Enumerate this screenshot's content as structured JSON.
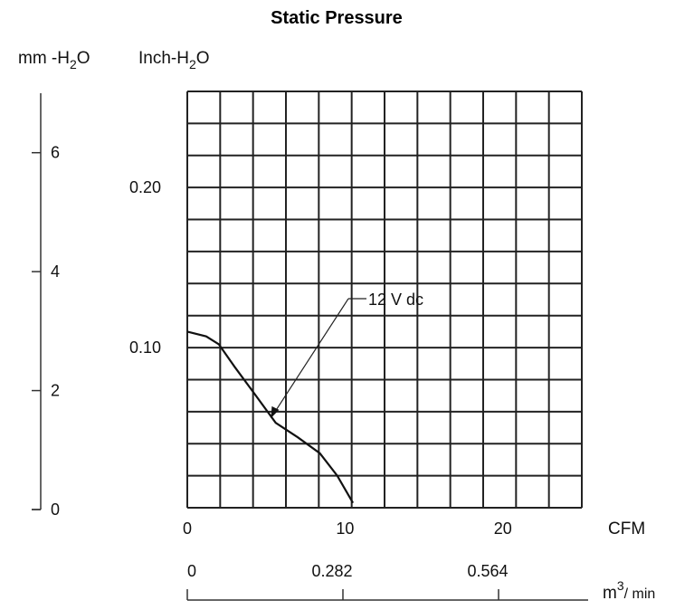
{
  "chart_data": {
    "type": "line",
    "title": "Static Pressure",
    "y_axis_left": {
      "label": "mm -H2O",
      "range": [
        0,
        7
      ],
      "ticks": [
        0,
        2,
        4,
        6
      ],
      "tick_labels": [
        "0",
        "2",
        "4",
        "6"
      ]
    },
    "y_axis_right": {
      "label": "Inch-H2O",
      "range": [
        0,
        0.26
      ],
      "ticks": [
        0.1,
        0.2
      ],
      "tick_labels": [
        "0.10",
        "0.20"
      ]
    },
    "x_axis": {
      "label": "CFM",
      "range": [
        0,
        25
      ],
      "ticks": [
        0,
        10,
        20
      ],
      "tick_labels": [
        "0",
        "10",
        "20"
      ]
    },
    "x_axis_secondary": {
      "label": "m3/ min",
      "ticks": [
        0,
        0.282,
        0.564
      ],
      "tick_labels": [
        "0",
        "0.282",
        "0.564"
      ]
    },
    "grid": true,
    "grid_columns": 12,
    "grid_rows": 13,
    "series": [
      {
        "name": "12 V dc",
        "x": [
          0,
          1.2,
          2.0,
          3.0,
          4.2,
          5.6,
          7.0,
          8.4,
          9.5,
          10.5
        ],
        "y": [
          0.11,
          0.107,
          0.102,
          0.088,
          0.072,
          0.053,
          0.044,
          0.034,
          0.02,
          0.003
        ]
      }
    ],
    "annotation": {
      "text": "12 V dc",
      "series": "12 V dc",
      "x": 5.3,
      "y": 0.056
    }
  }
}
